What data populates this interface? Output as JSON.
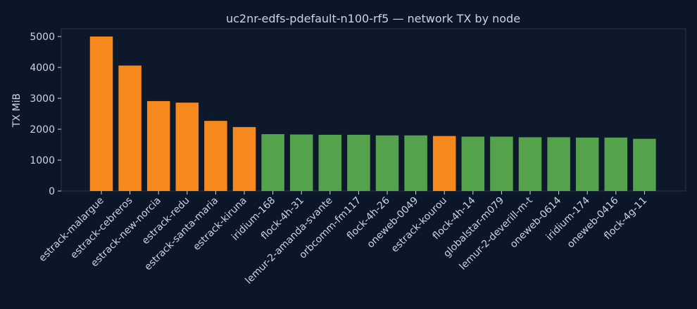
{
  "chart_data": {
    "type": "bar",
    "title": "uc2nr-edfs-pdefault-n100-rf5 — network TX by node",
    "xlabel": "",
    "ylabel": "TX MiB",
    "ylim": [
      0,
      5250
    ],
    "yticks": [
      0,
      1000,
      2000,
      3000,
      4000,
      5000
    ],
    "grid": false,
    "categories": [
      "estrack-malargue",
      "estrack-cebreros",
      "estrack-new-norcia",
      "estrack-redu",
      "estrack-santa-maria",
      "estrack-kiruna",
      "iridium-168",
      "flock-4h-31",
      "lemur-2-amanda-svante",
      "orbcomm-fm117",
      "flock-4h-26",
      "oneweb-0049",
      "estrack-kourou",
      "flock-4h-14",
      "globalstar-m079",
      "lemur-2-deverill-m-t",
      "oneweb-0614",
      "iridium-174",
      "oneweb-0416",
      "flock-4g-11"
    ],
    "values": [
      5000,
      4060,
      2910,
      2860,
      2270,
      2070,
      1840,
      1830,
      1820,
      1820,
      1800,
      1800,
      1780,
      1760,
      1760,
      1740,
      1740,
      1730,
      1730,
      1690
    ],
    "bar_groups": [
      "ground",
      "ground",
      "ground",
      "ground",
      "ground",
      "ground",
      "satellite",
      "satellite",
      "satellite",
      "satellite",
      "satellite",
      "satellite",
      "ground",
      "satellite",
      "satellite",
      "satellite",
      "satellite",
      "satellite",
      "satellite",
      "satellite"
    ],
    "colors": {
      "ground": "#f5891e",
      "satellite": "#55a24c",
      "background": "#0b1628",
      "plot_background": "#0e182b",
      "text": "#cbd5e1"
    }
  }
}
